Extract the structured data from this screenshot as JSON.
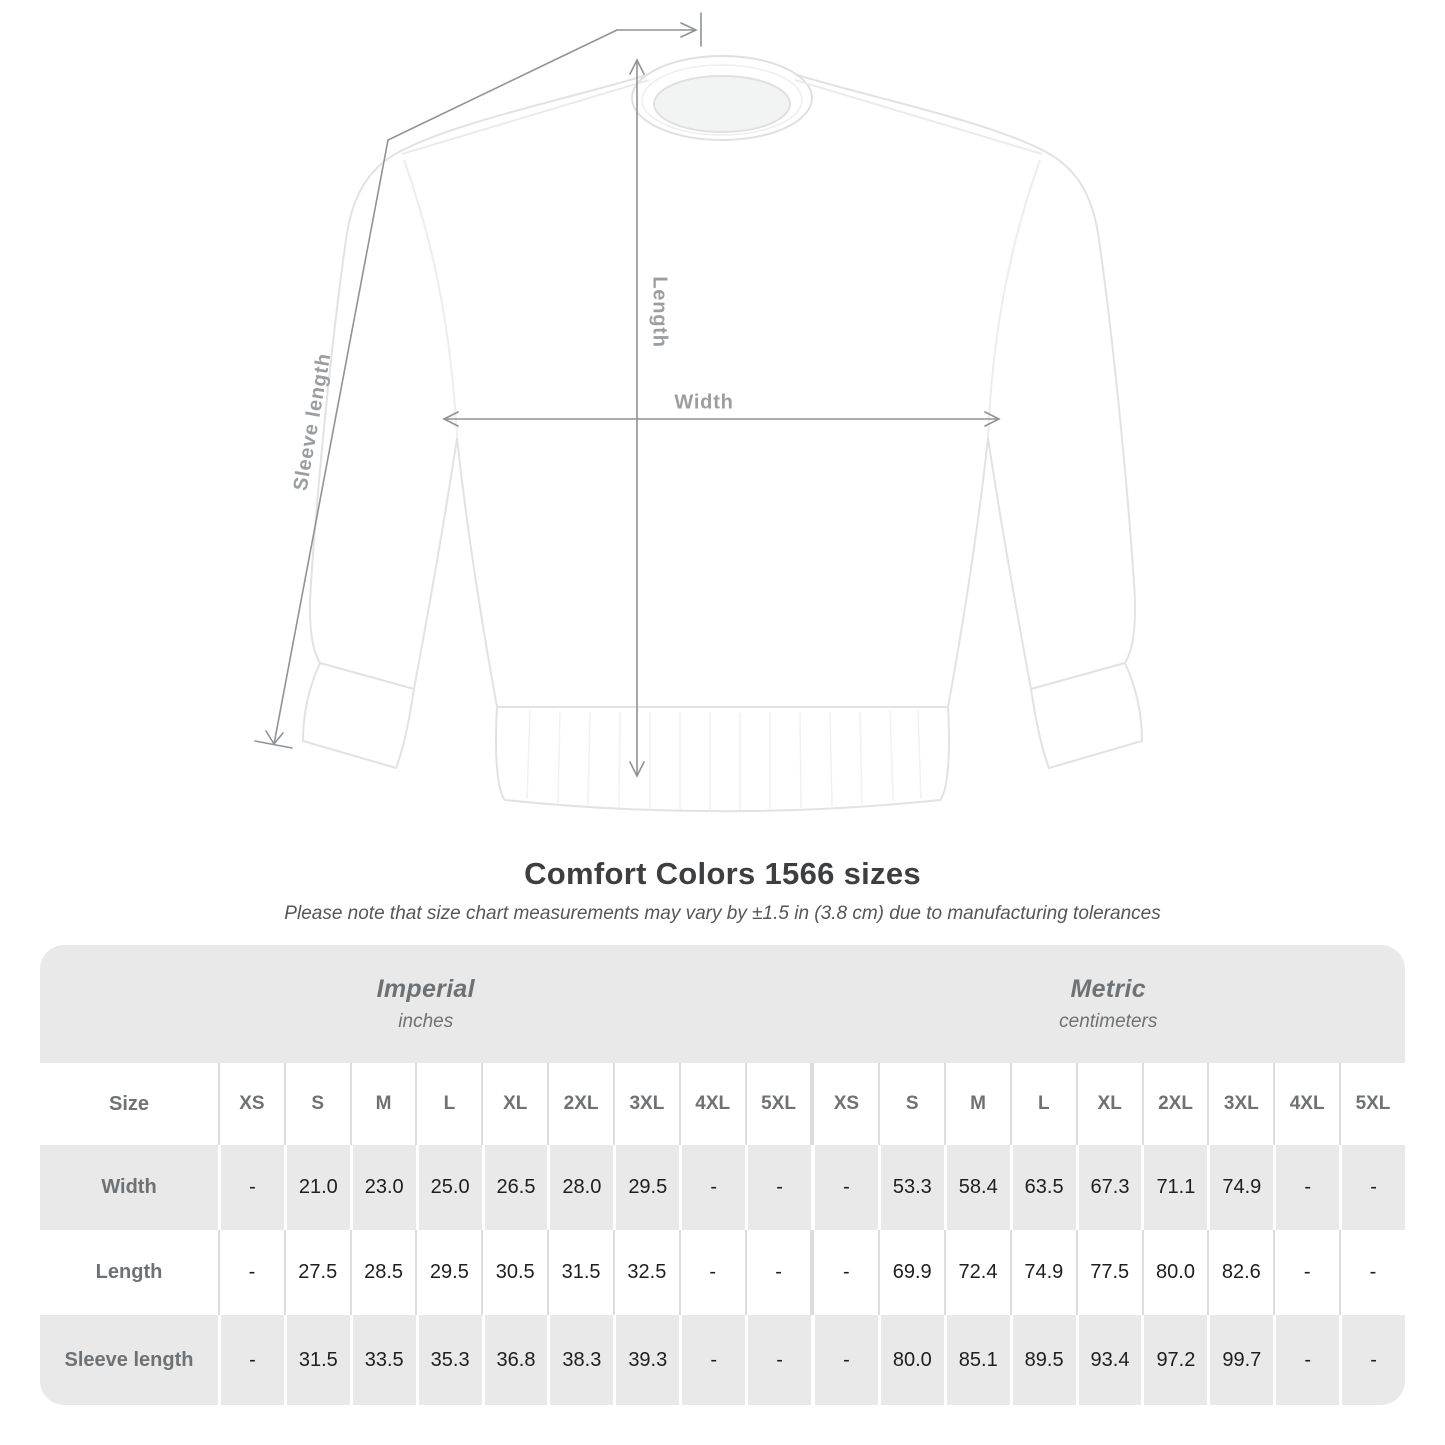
{
  "title": "Comfort Colors 1566 sizes",
  "subtitle": "Please note that size chart measurements may vary by ±1.5 in (3.8 cm) due to manufacturing tolerances",
  "diagram": {
    "garment": "white crewneck sweatshirt, flat lay front view",
    "labels": {
      "length": "Length",
      "width": "Width",
      "sleeve": "Sleeve length"
    }
  },
  "table": {
    "size_label": "Size",
    "unit_groups": [
      {
        "name": "Imperial",
        "unit": "inches"
      },
      {
        "name": "Metric",
        "unit": "centimeters"
      }
    ],
    "sizes": [
      "XS",
      "S",
      "M",
      "L",
      "XL",
      "2XL",
      "3XL",
      "4XL",
      "5XL"
    ],
    "rows": [
      {
        "label": "Width",
        "imperial": [
          "-",
          "21.0",
          "23.0",
          "25.0",
          "26.5",
          "28.0",
          "29.5",
          "-",
          "-"
        ],
        "metric": [
          "-",
          "53.3",
          "58.4",
          "63.5",
          "67.3",
          "71.1",
          "74.9",
          "-",
          "-"
        ]
      },
      {
        "label": "Length",
        "imperial": [
          "-",
          "27.5",
          "28.5",
          "29.5",
          "30.5",
          "31.5",
          "32.5",
          "-",
          "-"
        ],
        "metric": [
          "-",
          "69.9",
          "72.4",
          "74.9",
          "77.5",
          "80.0",
          "82.6",
          "-",
          "-"
        ]
      },
      {
        "label": "Sleeve length",
        "imperial": [
          "-",
          "31.5",
          "33.5",
          "35.3",
          "36.8",
          "38.3",
          "39.3",
          "-",
          "-"
        ],
        "metric": [
          "-",
          "80.0",
          "85.1",
          "89.5",
          "93.4",
          "97.2",
          "99.7",
          "-",
          "-"
        ]
      }
    ]
  },
  "colors": {
    "band_gray": "#e9e9e9",
    "header_text": "#6d7276",
    "value_text": "#1e1e1f",
    "measure_line": "#8e9398",
    "diagram_label": "#999ea2",
    "garment_outline": "#e2e2e2"
  }
}
